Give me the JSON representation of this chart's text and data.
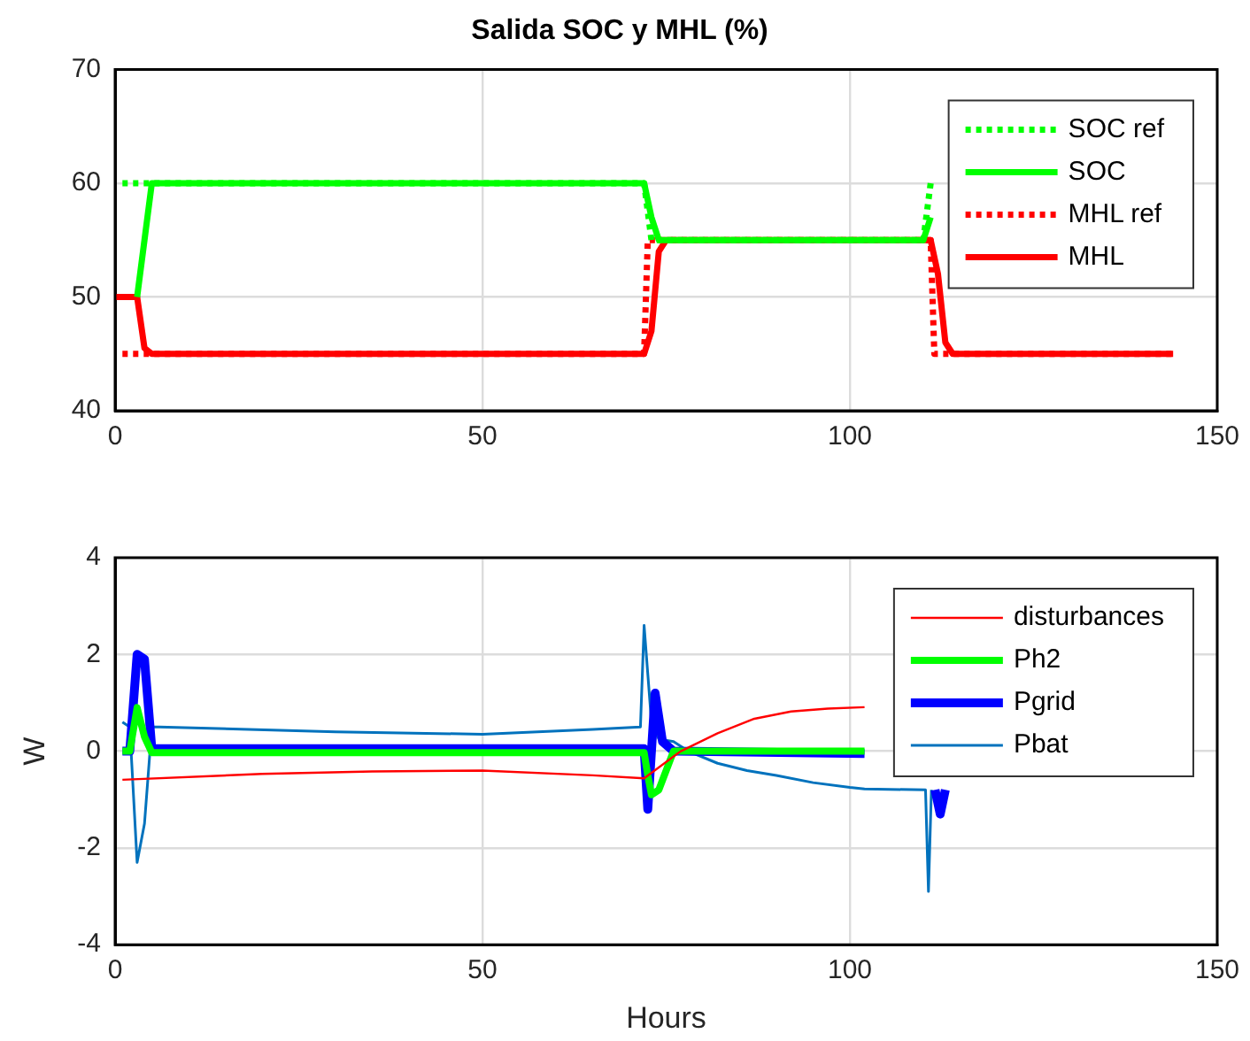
{
  "chart_data": [
    {
      "type": "line",
      "title": "Salida SOC y MHL (%)",
      "xlim": [
        0,
        150
      ],
      "xticks": [
        0,
        50,
        100,
        150
      ],
      "ylim": [
        40,
        70
      ],
      "yticks": [
        40,
        50,
        60,
        70
      ],
      "grid": true,
      "legend": "top right",
      "marker": "none",
      "series": [
        {
          "name": "SOC ref",
          "color": "#00ff00",
          "line_style": "dotted",
          "x": [
            1,
            72,
            73,
            110,
            111
          ],
          "values": [
            60,
            60,
            55,
            55,
            60
          ]
        },
        {
          "name": "SOC",
          "color": "#00ff00",
          "line_style": "solid",
          "x": [
            3,
            4,
            5,
            72,
            73,
            74,
            110,
            111
          ],
          "values": [
            50,
            55,
            60,
            60,
            57,
            55,
            55,
            57
          ]
        },
        {
          "name": "MHL ref",
          "color": "#ff0000",
          "line_style": "dotted",
          "x": [
            1,
            72,
            72.5,
            111,
            111.5,
            144
          ],
          "values": [
            45,
            45,
            55,
            55,
            45,
            45
          ]
        },
        {
          "name": "MHL",
          "color": "#ff0000",
          "line_style": "solid",
          "x": [
            0,
            3,
            4,
            5,
            72,
            73,
            74,
            75,
            111,
            112,
            113,
            114,
            144
          ],
          "values": [
            50,
            50,
            45.5,
            45,
            45,
            47,
            54,
            55,
            55,
            52,
            46,
            45,
            45
          ]
        }
      ]
    },
    {
      "type": "line",
      "xlabel": "Hours",
      "ylabel": "W",
      "xlim": [
        0,
        150
      ],
      "xticks": [
        0,
        50,
        100,
        150
      ],
      "ylim": [
        -4,
        4
      ],
      "yticks": [
        -4,
        -2,
        0,
        2,
        4
      ],
      "grid": true,
      "legend": "top right",
      "marker": "none",
      "line_style": "solid",
      "series": [
        {
          "name": "disturbances",
          "color": "#ff0000",
          "x": [
            1,
            20,
            35,
            50,
            65,
            72,
            77,
            82,
            87,
            92,
            97,
            102
          ],
          "values": [
            -0.59,
            -0.47,
            -0.42,
            -0.4,
            -0.5,
            -0.56,
            0,
            0.37,
            0.67,
            0.82,
            0.88,
            0.91
          ]
        },
        {
          "name": "Ph2",
          "color": "#00ff00",
          "x": [
            1,
            2,
            3,
            4,
            5,
            72,
            72.5,
            73,
            74,
            76,
            102
          ],
          "values": [
            0,
            0,
            0.9,
            0.3,
            -0.03,
            -0.03,
            -0.5,
            -0.9,
            -0.8,
            0,
            0
          ]
        },
        {
          "name": "Pgrid",
          "color": "#0000ff",
          "x": [
            1,
            2,
            3,
            4,
            5,
            72,
            72.5,
            73.5,
            74.5,
            76,
            102,
            110.8,
            111.6,
            112.3,
            113
          ],
          "values": [
            0,
            0,
            2,
            1.9,
            0.05,
            0.05,
            -1.2,
            1.2,
            0.2,
            0,
            -0.05,
            null,
            -0.8,
            -1.3,
            -0.8
          ]
        },
        {
          "name": "Pbat",
          "color": "#0072bd",
          "x": [
            1,
            2,
            3,
            4,
            5,
            6,
            30,
            50,
            65,
            71.5,
            72,
            73,
            74,
            76,
            78,
            82,
            86,
            90,
            95,
            100,
            102,
            110.3,
            110.7,
            111.1
          ],
          "values": [
            0.6,
            0.5,
            -2.3,
            -1.5,
            0.5,
            0.5,
            0.4,
            0.35,
            0.45,
            0.5,
            2.6,
            0.6,
            0.25,
            0.2,
            0,
            -0.25,
            -0.4,
            -0.5,
            -0.65,
            -0.75,
            -0.78,
            -0.8,
            -2.9,
            -0.8
          ]
        }
      ]
    }
  ]
}
